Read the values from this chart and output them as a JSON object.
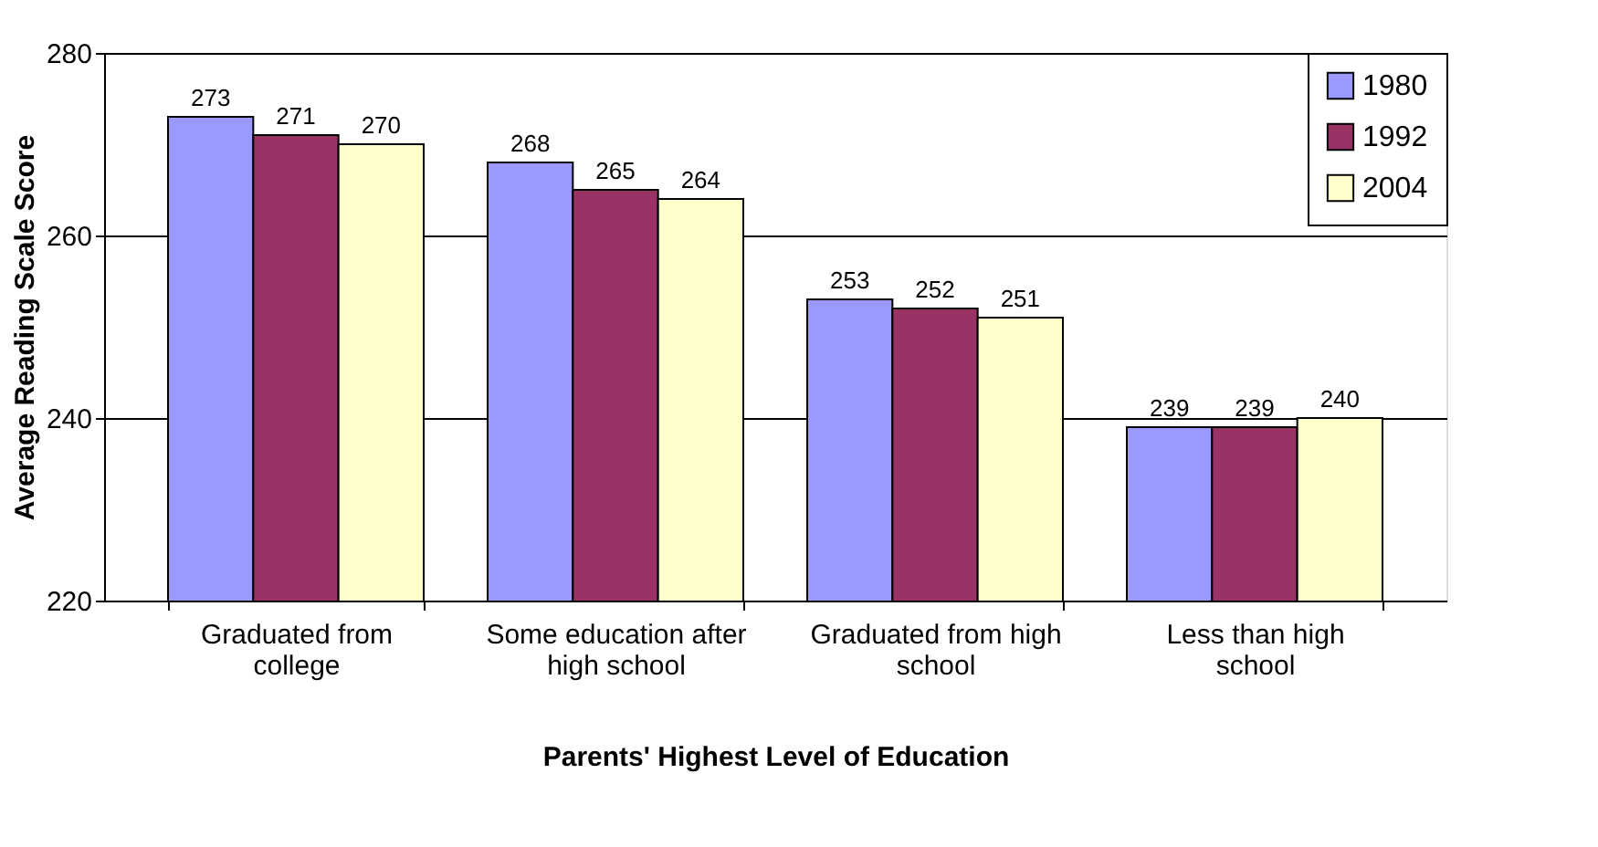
{
  "chart_data": {
    "type": "bar",
    "xlabel": "Parents' Highest Level of Education",
    "ylabel": "Average Reading Scale Score",
    "categories": [
      "Graduated from college",
      "Some education after high school",
      "Graduated from high school",
      "Less than high school"
    ],
    "series": [
      {
        "name": "1980",
        "color": "#9999ff",
        "values": [
          273,
          268,
          253,
          239
        ]
      },
      {
        "name": "1992",
        "color": "#993366",
        "values": [
          271,
          265,
          252,
          239
        ]
      },
      {
        "name": "2004",
        "color": "#ffffcc",
        "values": [
          270,
          264,
          251,
          240
        ]
      }
    ],
    "ylim": [
      220,
      280
    ],
    "yticks": [
      220,
      240,
      260,
      280
    ],
    "grid": "y",
    "legend": "top right",
    "data_labels": true
  }
}
